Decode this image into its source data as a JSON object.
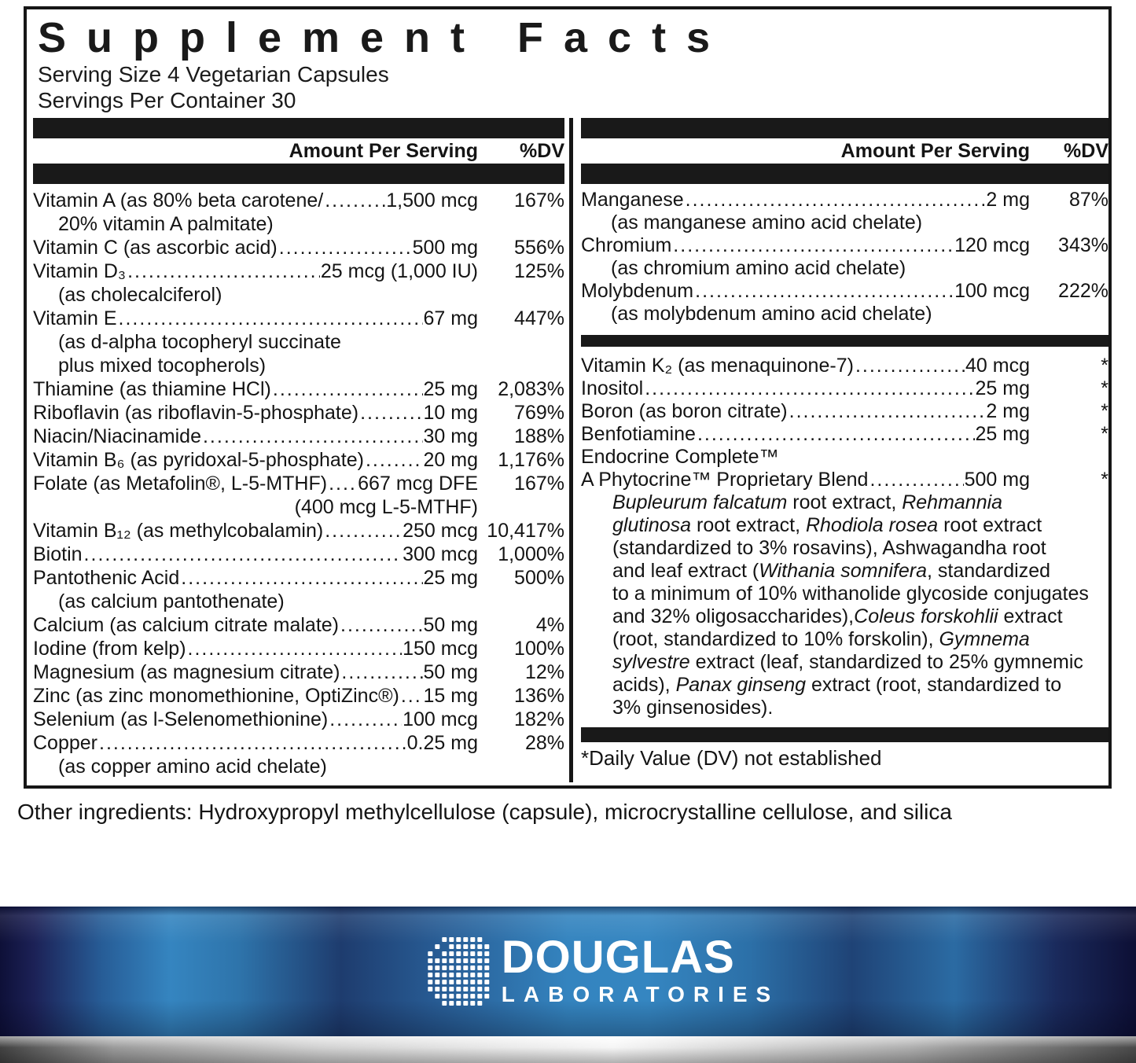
{
  "title": "Supplement Facts",
  "serving": {
    "size": "Serving Size 4 Vegetarian Capsules",
    "per_container": "Servings Per Container 30"
  },
  "columns": {
    "header": {
      "amount": "Amount Per Serving",
      "dv": "%DV"
    }
  },
  "left_rows": [
    {
      "name": "Vitamin A (as 80% beta carotene/",
      "amount": "1,500 mcg",
      "dv": "167%",
      "subs": [
        {
          "text": "20% vitamin A palmitate)"
        }
      ]
    },
    {
      "name": "Vitamin C (as ascorbic acid)",
      "amount": "500 mg",
      "dv": "556%"
    },
    {
      "name": "Vitamin D₃",
      "amount": "25 mcg (1,000 IU)",
      "dv": "125%",
      "subs": [
        {
          "text": "(as cholecalciferol)"
        }
      ]
    },
    {
      "name": "Vitamin E",
      "amount": "67 mg",
      "dv": "447%",
      "subs": [
        {
          "text": "(as d-alpha tocopheryl succinate"
        },
        {
          "text": "plus mixed tocopherols)"
        }
      ]
    },
    {
      "name": "Thiamine (as thiamine HCl)",
      "amount": "25 mg",
      "dv": "2,083%"
    },
    {
      "name": "Riboflavin (as riboflavin-5-phosphate)",
      "amount": "10 mg",
      "dv": "769%"
    },
    {
      "name": "Niacin/Niacinamide",
      "amount": "30 mg",
      "dv": "188%"
    },
    {
      "name": "Vitamin B₆ (as pyridoxal-5-phosphate)",
      "amount": "20 mg",
      "dv": "1,176%"
    },
    {
      "name": "Folate (as Metafolin®, L-5-MTHF)",
      "amount": "667 mcg DFE",
      "dv": "167%",
      "subs": [
        {
          "text": "(400 mcg L-5-MTHF)",
          "align": "right"
        }
      ]
    },
    {
      "name": "Vitamin B₁₂ (as methylcobalamin)",
      "amount": "250 mcg",
      "dv": "10,417%"
    },
    {
      "name": "Biotin",
      "amount": "300 mcg",
      "dv": "1,000%"
    },
    {
      "name": "Pantothenic Acid",
      "amount": "25 mg",
      "dv": "500%",
      "subs": [
        {
          "text": "(as calcium pantothenate)"
        }
      ]
    },
    {
      "name": "Calcium (as calcium citrate malate)",
      "amount": "50 mg",
      "dv": "4%"
    },
    {
      "name": "Iodine (from kelp)",
      "amount": "150 mcg",
      "dv": "100%"
    },
    {
      "name": "Magnesium (as magnesium citrate)",
      "amount": "50 mg",
      "dv": "12%"
    },
    {
      "name": "Zinc (as zinc monomethionine, OptiZinc®)",
      "amount": "15 mg",
      "dv": "136%"
    },
    {
      "name": "Selenium (as l-Selenomethionine)",
      "amount": "100 mcg",
      "dv": "182%"
    },
    {
      "name": "Copper",
      "amount": "0.25 mg",
      "dv": "28%",
      "subs": [
        {
          "text": "(as copper amino acid chelate)"
        }
      ]
    }
  ],
  "right_top_rows": [
    {
      "name": "Manganese",
      "amount": "2 mg",
      "dv": "87%",
      "subs": [
        {
          "text": "(as manganese amino acid chelate)"
        }
      ]
    },
    {
      "name": "Chromium",
      "amount": "120 mcg",
      "dv": "343%",
      "subs": [
        {
          "text": "(as chromium amino acid chelate)"
        }
      ]
    },
    {
      "name": "Molybdenum",
      "amount": "100 mcg",
      "dv": "222%",
      "subs": [
        {
          "text": "(as molybdenum amino acid chelate)"
        }
      ]
    }
  ],
  "right_star_rows": [
    {
      "name": "Vitamin K₂ (as menaquinone-7)",
      "amount": "40 mcg",
      "dv": "*"
    },
    {
      "name": "Inositol",
      "amount": "25 mg",
      "dv": "*"
    },
    {
      "name": "Boron (as boron citrate)",
      "amount": "2 mg",
      "dv": "*"
    },
    {
      "name": "Benfotiamine",
      "amount": "25 mg",
      "dv": "*"
    },
    {
      "name": "Endocrine Complete™",
      "amount": "",
      "dv": "",
      "dots": false
    },
    {
      "name": "A Phytocrine™ Proprietary Blend",
      "amount": "500 mg",
      "dv": "*"
    }
  ],
  "blend_lines": [
    [
      {
        "t": "Bupleurum falcatum",
        "i": true
      },
      {
        "t": " root extract, ",
        "i": false
      },
      {
        "t": "Rehmannia",
        "i": true
      }
    ],
    [
      {
        "t": "glutinosa",
        "i": true
      },
      {
        "t": " root extract, ",
        "i": false
      },
      {
        "t": "Rhodiola rosea",
        "i": true
      },
      {
        "t": " root extract",
        "i": false
      }
    ],
    [
      {
        "t": "(standardized to 3% rosavins), Ashwagandha root",
        "i": false
      }
    ],
    [
      {
        "t": "and leaf extract (",
        "i": false
      },
      {
        "t": "Withania somnifera",
        "i": true
      },
      {
        "t": ", standardized",
        "i": false
      }
    ],
    [
      {
        "t": "to a minimum of 10% withanolide glycoside conjugates",
        "i": false
      }
    ],
    [
      {
        "t": "and 32% oligosaccharides),",
        "i": false
      },
      {
        "t": "Coleus forskohlii",
        "i": true
      },
      {
        "t": " extract",
        "i": false
      }
    ],
    [
      {
        "t": "(root, standardized to 10% forskolin), ",
        "i": false
      },
      {
        "t": "Gymnema",
        "i": true
      }
    ],
    [
      {
        "t": "sylvestre",
        "i": true
      },
      {
        "t": " extract (leaf, standardized to 25% gymnemic",
        "i": false
      }
    ],
    [
      {
        "t": "acids), ",
        "i": false
      },
      {
        "t": "Panax ginseng",
        "i": true
      },
      {
        "t": " extract (root, standardized to",
        "i": false
      }
    ],
    [
      {
        "t": "3% ginsenosides).",
        "i": false
      }
    ]
  ],
  "footnote": "*Daily Value (DV) not established",
  "other_ingredients": "Other ingredients: Hydroxypropyl methylcellulose (capsule), microcrystalline cellulose, and silica",
  "brand": {
    "name": "DOUGLAS",
    "sub": "LABORATORIES"
  },
  "colors": {
    "text_black": "#161616",
    "band_blue": "#3484bf",
    "band_navy": "#0e1038",
    "metal_silver": "#d8d8d8",
    "logo_white": "#ffffff"
  }
}
